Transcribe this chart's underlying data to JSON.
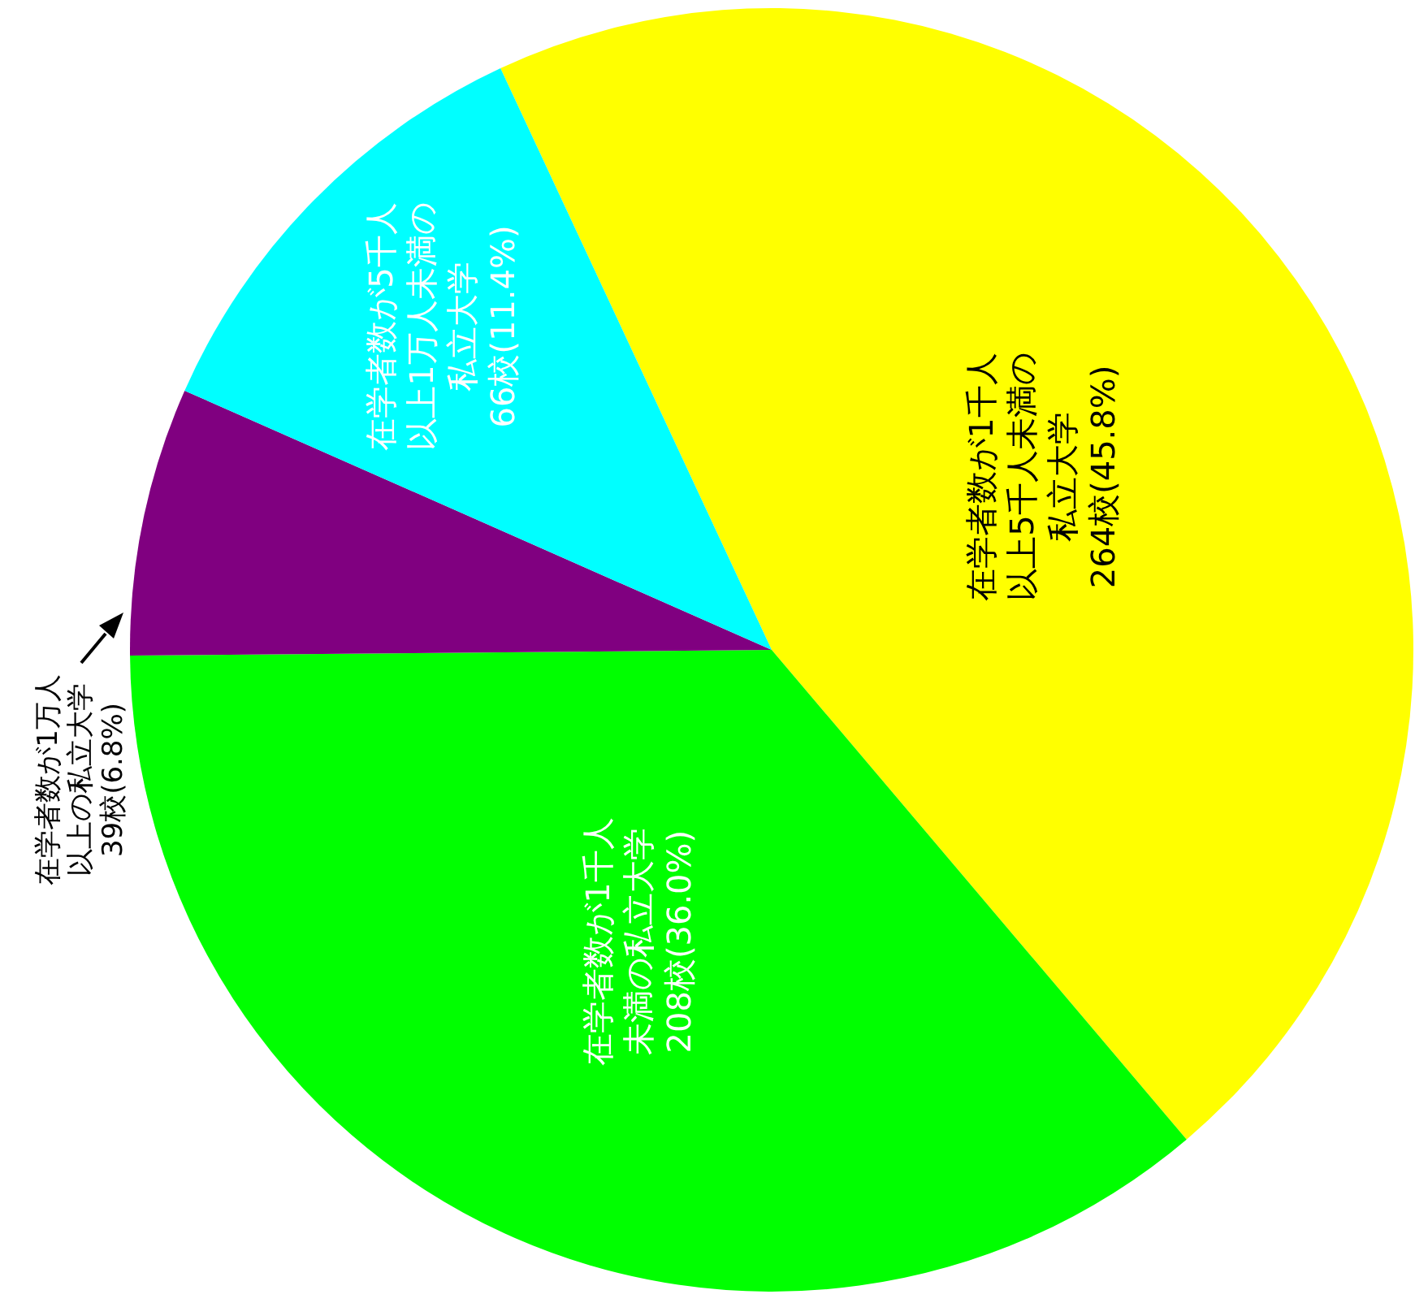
{
  "chart_data": {
    "type": "pie",
    "categories": [
      "在学者数が1千人以上5千人未満の私立大学",
      "在学者数が1千人未満の私立大学",
      "在学者数が1万人以上の私立大学",
      "在学者数が5千人以上1万人未満の私立大学"
    ],
    "values": [
      264,
      208,
      39,
      66
    ],
    "value_labels": [
      "264校(45.8%)",
      "208校(36.0%)",
      "39校(6.8%)",
      "66校(11.4%)"
    ],
    "colors": [
      "#ffff00",
      "#00ff00",
      "#800080",
      "#00ffff"
    ],
    "legend": false
  }
}
